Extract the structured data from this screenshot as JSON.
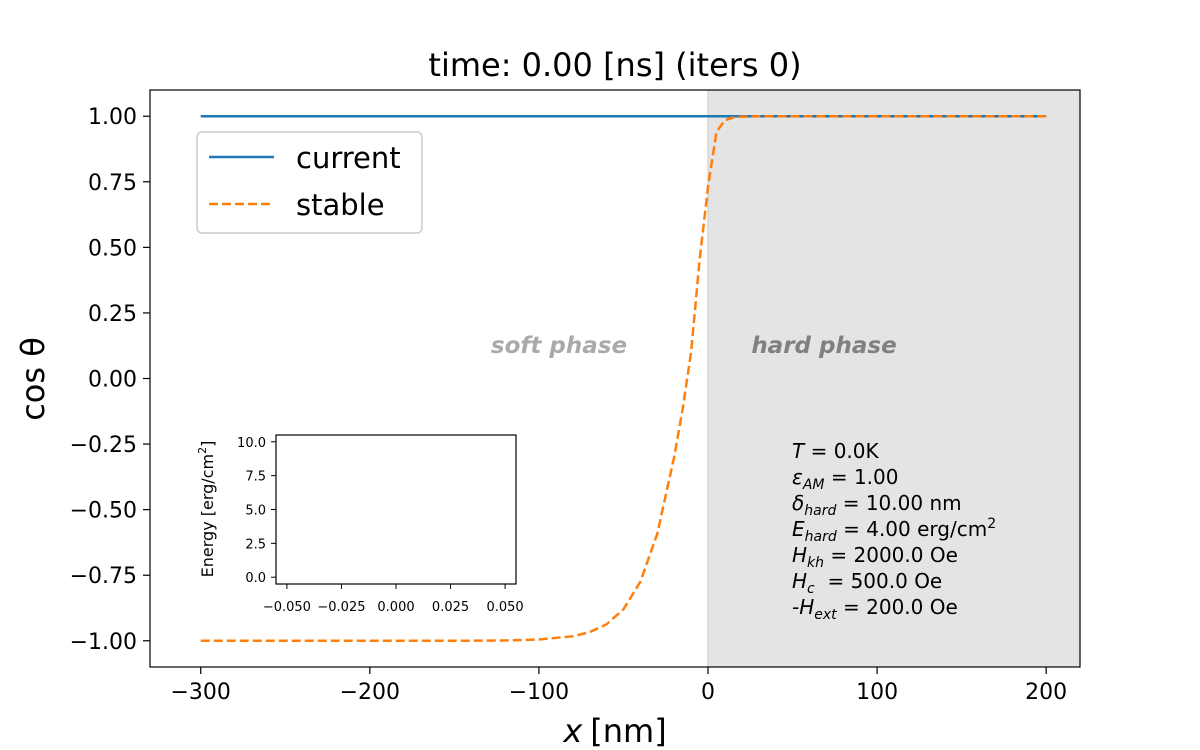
{
  "chart_data": [
    {
      "type": "line",
      "title": "time: 0.00 [ns]  (iters 0)",
      "xlabel_var": "x",
      "xlabel_unit": "[nm]",
      "ylabel": "cos θ",
      "xlim": [
        -330,
        220
      ],
      "ylim": [
        -1.1,
        1.1
      ],
      "xticks": [
        -300,
        -200,
        -100,
        0,
        100,
        200
      ],
      "xtick_labels": [
        "−300",
        "−200",
        "−100",
        "0",
        "100",
        "200"
      ],
      "yticks": [
        1.0,
        0.75,
        0.5,
        0.25,
        0.0,
        -0.25,
        -0.5,
        -0.75,
        -1.0
      ],
      "ytick_labels": [
        "1.00",
        "0.75",
        "0.50",
        "0.25",
        "0.00",
        "−0.25",
        "−0.50",
        "−0.75",
        "−1.00"
      ],
      "grid": false,
      "legend_position": "top-left",
      "hard_region": [
        0,
        220
      ],
      "region_labels": {
        "soft": "soft phase",
        "hard": "hard phase"
      },
      "series": [
        {
          "name": "current",
          "color": "#1f77b4",
          "style": "solid",
          "x": [
            -300,
            -200,
            -100,
            0,
            100,
            200
          ],
          "y": [
            1.0,
            1.0,
            1.0,
            1.0,
            1.0,
            1.0
          ]
        },
        {
          "name": "stable",
          "color": "#ff7f0e",
          "style": "dashed",
          "x": [
            -300,
            -200,
            -150,
            -120,
            -100,
            -80,
            -70,
            -60,
            -50,
            -40,
            -30,
            -20,
            -15,
            -10,
            -5,
            0,
            5,
            10,
            15,
            20,
            30,
            50,
            100,
            200
          ],
          "y": [
            -1.0,
            -1.0,
            -1.0,
            -0.999,
            -0.995,
            -0.983,
            -0.967,
            -0.937,
            -0.88,
            -0.775,
            -0.592,
            -0.299,
            -0.117,
            0.1,
            0.45,
            0.73,
            0.94,
            0.985,
            0.995,
            0.998,
            1.0,
            1.0,
            1.0,
            1.0
          ]
        }
      ],
      "params": [
        {
          "sym": "T",
          "sub": "",
          "value": " = 0.0K"
        },
        {
          "sym": "ε",
          "sub": "AM",
          "value": " = 1.00"
        },
        {
          "sym": "δ",
          "sub": "hard",
          "value": " = 10.00 nm"
        },
        {
          "sym": "E",
          "sub": "hard",
          "value": " = 4.00 erg/cm",
          "sup": "2"
        },
        {
          "sym": "H",
          "sub": "kh",
          "value": " = 2000.0 Oe"
        },
        {
          "sym": "H",
          "sub": "c",
          "value": "  = 500.0 Oe"
        },
        {
          "sym": "-H",
          "sub": "ext",
          "value": " = 200.0 Oe"
        }
      ]
    },
    {
      "type": "line",
      "ylabel": "Energy [erg/cm",
      "ylabel_sup": "2",
      "ylabel_end": "]",
      "xlim": [
        -0.055,
        0.055
      ],
      "ylim": [
        -0.5,
        10.5
      ],
      "xticks": [
        -0.05,
        -0.025,
        0.0,
        0.025,
        0.05
      ],
      "xtick_labels": [
        "−0.050",
        "−0.025",
        "0.000",
        "0.025",
        "0.050"
      ],
      "yticks": [
        0.0,
        2.5,
        5.0,
        7.5,
        10.0
      ],
      "ytick_labels": [
        "0.0",
        "2.5",
        "5.0",
        "7.5",
        "10.0"
      ],
      "series": []
    }
  ]
}
